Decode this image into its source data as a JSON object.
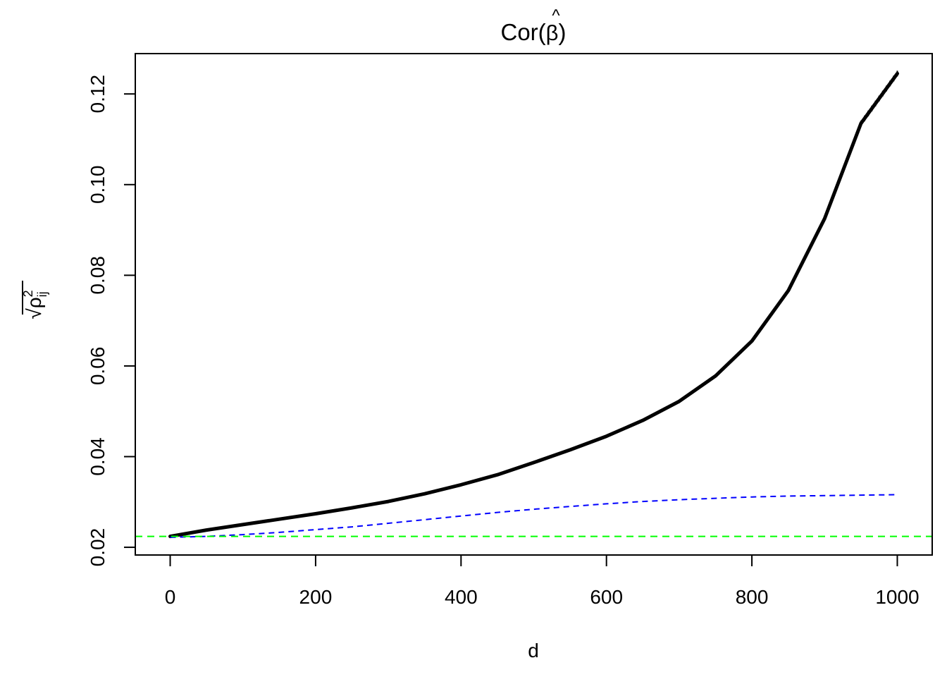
{
  "chart_data": {
    "type": "line",
    "title": "Cor(β̂)",
    "title_parts": {
      "prefix": "Cor(",
      "symbol": "β",
      "hat": "^",
      "suffix": ")"
    },
    "xlabel": "d",
    "ylabel": "√ρ²ij",
    "ylabel_parts": {
      "root": "√",
      "rho": "ρ",
      "sup": "2",
      "sub": "ij"
    },
    "xlim": [
      -48,
      1048
    ],
    "ylim": [
      0.0183,
      0.1289
    ],
    "x_ticks": [
      0,
      200,
      400,
      600,
      800,
      1000
    ],
    "x_tick_labels": [
      "0",
      "200",
      "400",
      "600",
      "800",
      "1000"
    ],
    "y_ticks": [
      0.02,
      0.04,
      0.06,
      0.08,
      0.1,
      0.12
    ],
    "y_tick_labels": [
      "0.02",
      "0.04",
      "0.06",
      "0.08",
      "0.10",
      "0.12"
    ],
    "grid": false,
    "series": [
      {
        "style": "thick-solid-noisy",
        "color": "#000000",
        "x": [
          0,
          50,
          100,
          150,
          200,
          250,
          300,
          350,
          400,
          450,
          500,
          550,
          600,
          650,
          700,
          750,
          800,
          850,
          900,
          950,
          1000
        ],
        "values": [
          0.0224,
          0.0238,
          0.025,
          0.0262,
          0.0274,
          0.0287,
          0.0301,
          0.0318,
          0.0338,
          0.036,
          0.0387,
          0.0415,
          0.0445,
          0.048,
          0.0522,
          0.0578,
          0.0655,
          0.0766,
          0.0925,
          0.1135,
          0.1245
        ]
      },
      {
        "style": "dashed",
        "color": "#0000ff",
        "x": [
          0,
          50,
          100,
          150,
          200,
          250,
          300,
          350,
          400,
          450,
          500,
          550,
          600,
          650,
          700,
          750,
          800,
          850,
          900,
          950,
          1000
        ],
        "values": [
          0.0222,
          0.0224,
          0.0228,
          0.0233,
          0.0239,
          0.0245,
          0.0253,
          0.0261,
          0.0269,
          0.0277,
          0.0284,
          0.029,
          0.0296,
          0.0301,
          0.0305,
          0.0308,
          0.0311,
          0.0313,
          0.0314,
          0.0315,
          0.0316
        ]
      },
      {
        "style": "dashed-reference",
        "color": "#00ff00",
        "x": [
          -48,
          1048
        ],
        "values": [
          0.0224,
          0.0224
        ]
      }
    ]
  }
}
